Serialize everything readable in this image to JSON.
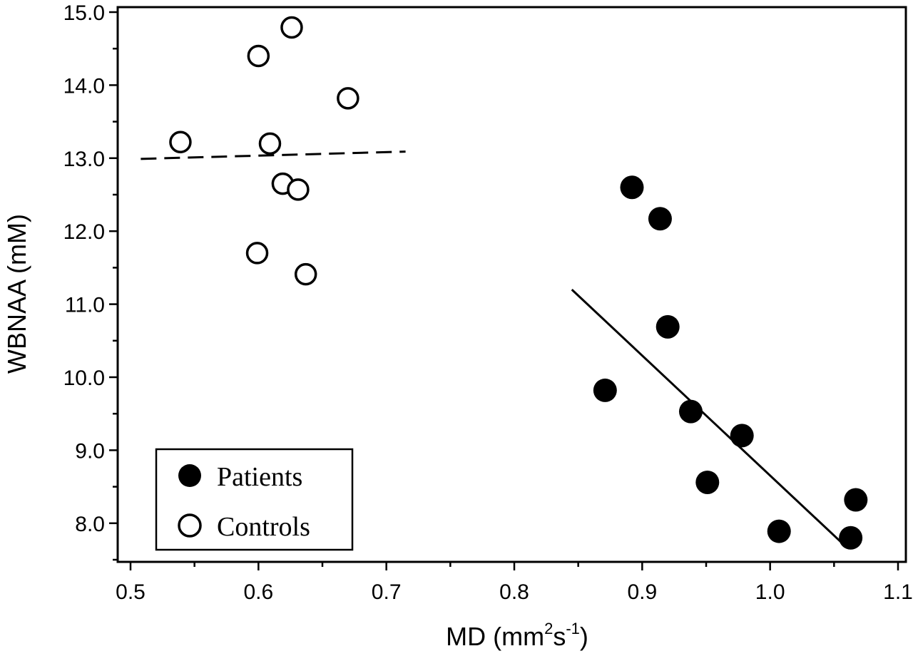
{
  "chart_data": {
    "type": "scatter",
    "title": "",
    "xlabel": "MD (mm²s⁻¹)",
    "xlabel_parts": {
      "main": "MD (mm",
      "sup1": "2",
      "mid": "s",
      "sup2": "-1",
      "end": ")"
    },
    "ylabel": "WBNAA (mM)",
    "xlim": [
      0.5,
      1.1
    ],
    "ylim": [
      7.5,
      15.0
    ],
    "x_ticks": [
      0.5,
      0.6,
      0.7,
      0.8,
      0.9,
      1.0,
      1.1
    ],
    "x_tick_labels": [
      "0.5",
      "0.6",
      "0.7",
      "0.8",
      "0.9",
      "1.0",
      "1.1"
    ],
    "y_ticks": [
      8.0,
      9.0,
      10.0,
      11.0,
      12.0,
      13.0,
      14.0,
      15.0
    ],
    "y_tick_labels": [
      "8.0",
      "9.0",
      "10.0",
      "11.0",
      "12.0",
      "13.0",
      "14.0",
      "15.0"
    ],
    "grid": false,
    "legend_position": "bottom-left",
    "series": [
      {
        "name": "Patients",
        "marker": "filled-circle",
        "points": [
          {
            "x": 0.892,
            "y": 12.6
          },
          {
            "x": 0.914,
            "y": 12.17
          },
          {
            "x": 0.92,
            "y": 10.69
          },
          {
            "x": 0.871,
            "y": 9.82
          },
          {
            "x": 0.938,
            "y": 9.53
          },
          {
            "x": 0.978,
            "y": 9.2
          },
          {
            "x": 0.951,
            "y": 8.56
          },
          {
            "x": 1.007,
            "y": 7.89
          },
          {
            "x": 1.063,
            "y": 7.8
          },
          {
            "x": 1.067,
            "y": 8.32
          }
        ],
        "fit": {
          "style": "solid",
          "x": [
            0.845,
            1.058
          ],
          "y": [
            11.2,
            7.7
          ]
        }
      },
      {
        "name": "Controls",
        "marker": "open-circle",
        "points": [
          {
            "x": 0.626,
            "y": 14.79
          },
          {
            "x": 0.6,
            "y": 14.4
          },
          {
            "x": 0.67,
            "y": 13.82
          },
          {
            "x": 0.539,
            "y": 13.22
          },
          {
            "x": 0.609,
            "y": 13.2
          },
          {
            "x": 0.619,
            "y": 12.65
          },
          {
            "x": 0.631,
            "y": 12.57
          },
          {
            "x": 0.599,
            "y": 11.7
          },
          {
            "x": 0.637,
            "y": 11.41
          }
        ],
        "fit": {
          "style": "dashed",
          "x": [
            0.508,
            0.715
          ],
          "y": [
            12.99,
            13.09
          ]
        }
      }
    ]
  }
}
